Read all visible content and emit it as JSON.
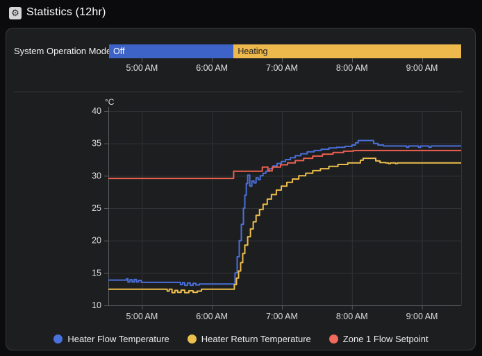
{
  "header": {
    "title": "Statistics (12hr)",
    "icon_glyph": "⚙"
  },
  "time_ticks": [
    {
      "t": 5,
      "label": "5:00 AM"
    },
    {
      "t": 6,
      "label": "6:00 AM"
    },
    {
      "t": 7,
      "label": "7:00 AM"
    },
    {
      "t": 8,
      "label": "8:00 AM"
    },
    {
      "t": 9,
      "label": "9:00 AM"
    }
  ],
  "operation_mode": {
    "label": "System Operation Mode",
    "segments": [
      {
        "label": "Off",
        "start": 4.53,
        "end": 6.31,
        "color": "#3e63c8",
        "text_color": "#ffffff"
      },
      {
        "label": "Heating",
        "start": 6.31,
        "end": 9.56,
        "color": "#edb94d",
        "text_color": "#1d1d1d"
      }
    ]
  },
  "chart_data": {
    "type": "line",
    "interpolation": "step-after",
    "unit": "°C",
    "ylim": [
      10,
      40
    ],
    "y_ticks": [
      10,
      15,
      20,
      25,
      30,
      35,
      40
    ],
    "x_range": [
      4.52,
      9.56
    ],
    "grid": true,
    "legend_position": "bottom",
    "series": [
      {
        "name": "Heater Flow Temperature",
        "color": "#4a6fd8",
        "points": [
          [
            4.52,
            13.9
          ],
          [
            4.78,
            14.1
          ],
          [
            4.8,
            13.6
          ],
          [
            4.83,
            13.95
          ],
          [
            4.86,
            13.6
          ],
          [
            4.89,
            14.0
          ],
          [
            4.92,
            13.6
          ],
          [
            4.95,
            13.85
          ],
          [
            4.99,
            13.55
          ],
          [
            5.55,
            13.2
          ],
          [
            5.58,
            13.5
          ],
          [
            5.61,
            13.1
          ],
          [
            5.65,
            13.45
          ],
          [
            5.69,
            13.1
          ],
          [
            5.73,
            13.4
          ],
          [
            5.77,
            13.15
          ],
          [
            5.82,
            13.3
          ],
          [
            6.31,
            13.3
          ],
          [
            6.33,
            15.0
          ],
          [
            6.36,
            17.5
          ],
          [
            6.39,
            20.0
          ],
          [
            6.42,
            22.5
          ],
          [
            6.45,
            25.0
          ],
          [
            6.47,
            27.0
          ],
          [
            6.49,
            28.8
          ],
          [
            6.51,
            30.1
          ],
          [
            6.54,
            28.4
          ],
          [
            6.57,
            29.2
          ],
          [
            6.6,
            28.9
          ],
          [
            6.63,
            29.7
          ],
          [
            6.66,
            29.4
          ],
          [
            6.69,
            30.0
          ],
          [
            6.73,
            30.4
          ],
          [
            6.77,
            30.7
          ],
          [
            6.82,
            31.1
          ],
          [
            6.87,
            31.5
          ],
          [
            6.93,
            31.9
          ],
          [
            6.99,
            32.2
          ],
          [
            7.05,
            32.5
          ],
          [
            7.12,
            32.8
          ],
          [
            7.19,
            33.1
          ],
          [
            7.27,
            33.4
          ],
          [
            7.36,
            33.7
          ],
          [
            7.46,
            33.9
          ],
          [
            7.56,
            34.1
          ],
          [
            7.67,
            34.3
          ],
          [
            7.78,
            34.4
          ],
          [
            7.9,
            34.55
          ],
          [
            8.0,
            34.75
          ],
          [
            8.05,
            35.1
          ],
          [
            8.09,
            35.45
          ],
          [
            8.27,
            35.45
          ],
          [
            8.31,
            35.0
          ],
          [
            8.37,
            34.75
          ],
          [
            8.45,
            34.6
          ],
          [
            8.78,
            34.4
          ],
          [
            8.81,
            34.6
          ],
          [
            8.95,
            34.4
          ],
          [
            8.98,
            34.6
          ],
          [
            9.1,
            34.4
          ],
          [
            9.13,
            34.6
          ],
          [
            9.56,
            34.6
          ]
        ]
      },
      {
        "name": "Heater Return Temperature",
        "color": "#ecbd4d",
        "points": [
          [
            4.52,
            12.5
          ],
          [
            5.36,
            12.2
          ],
          [
            5.39,
            12.5
          ],
          [
            5.43,
            11.95
          ],
          [
            5.47,
            12.3
          ],
          [
            5.51,
            12.0
          ],
          [
            5.56,
            12.35
          ],
          [
            5.61,
            11.95
          ],
          [
            5.67,
            12.25
          ],
          [
            5.73,
            12.0
          ],
          [
            5.79,
            12.2
          ],
          [
            5.85,
            12.5
          ],
          [
            6.32,
            13.2
          ],
          [
            6.35,
            14.2
          ],
          [
            6.38,
            15.3
          ],
          [
            6.41,
            16.6
          ],
          [
            6.44,
            18.0
          ],
          [
            6.47,
            19.3
          ],
          [
            6.51,
            20.6
          ],
          [
            6.55,
            21.8
          ],
          [
            6.59,
            22.9
          ],
          [
            6.63,
            23.9
          ],
          [
            6.68,
            24.8
          ],
          [
            6.73,
            25.6
          ],
          [
            6.79,
            26.4
          ],
          [
            6.85,
            27.1
          ],
          [
            6.92,
            27.8
          ],
          [
            6.99,
            28.4
          ],
          [
            7.07,
            29.0
          ],
          [
            7.15,
            29.5
          ],
          [
            7.24,
            30.0
          ],
          [
            7.34,
            30.4
          ],
          [
            7.44,
            30.8
          ],
          [
            7.55,
            31.1
          ],
          [
            7.67,
            31.45
          ],
          [
            7.8,
            31.75
          ],
          [
            7.94,
            32.0
          ],
          [
            8.12,
            32.4
          ],
          [
            8.16,
            32.7
          ],
          [
            8.3,
            32.7
          ],
          [
            8.34,
            32.3
          ],
          [
            8.4,
            32.05
          ],
          [
            8.48,
            32.0
          ],
          [
            8.52,
            31.9
          ],
          [
            8.55,
            32.0
          ],
          [
            8.62,
            31.9
          ],
          [
            8.65,
            32.0
          ],
          [
            9.56,
            32.0
          ]
        ]
      },
      {
        "name": "Zone 1 Flow Setpoint",
        "color": "#eb6050",
        "points": [
          [
            4.52,
            29.6
          ],
          [
            6.31,
            30.7
          ],
          [
            6.72,
            31.35
          ],
          [
            6.8,
            30.75
          ],
          [
            6.86,
            31.35
          ],
          [
            6.98,
            31.7
          ],
          [
            7.08,
            32.0
          ],
          [
            7.19,
            32.35
          ],
          [
            7.31,
            32.7
          ],
          [
            7.44,
            33.05
          ],
          [
            7.58,
            33.35
          ],
          [
            7.73,
            33.6
          ],
          [
            7.88,
            33.8
          ],
          [
            8.02,
            33.9
          ],
          [
            9.56,
            33.9
          ]
        ]
      }
    ]
  },
  "legend": {
    "items": [
      {
        "label": "Heater Flow Temperature",
        "color": "#4a72dc"
      },
      {
        "label": "Heater Return Temperature",
        "color": "#edbf4e"
      },
      {
        "label": "Zone 1 Flow Setpoint",
        "color": "#f0695a"
      }
    ]
  },
  "theme": {
    "page_bg": "#0c0c0e",
    "card_bg": "#1d1e20",
    "grid_color": "#323336",
    "axis_color": "#5a5b5e",
    "tick_text": "#dcdcdc"
  }
}
